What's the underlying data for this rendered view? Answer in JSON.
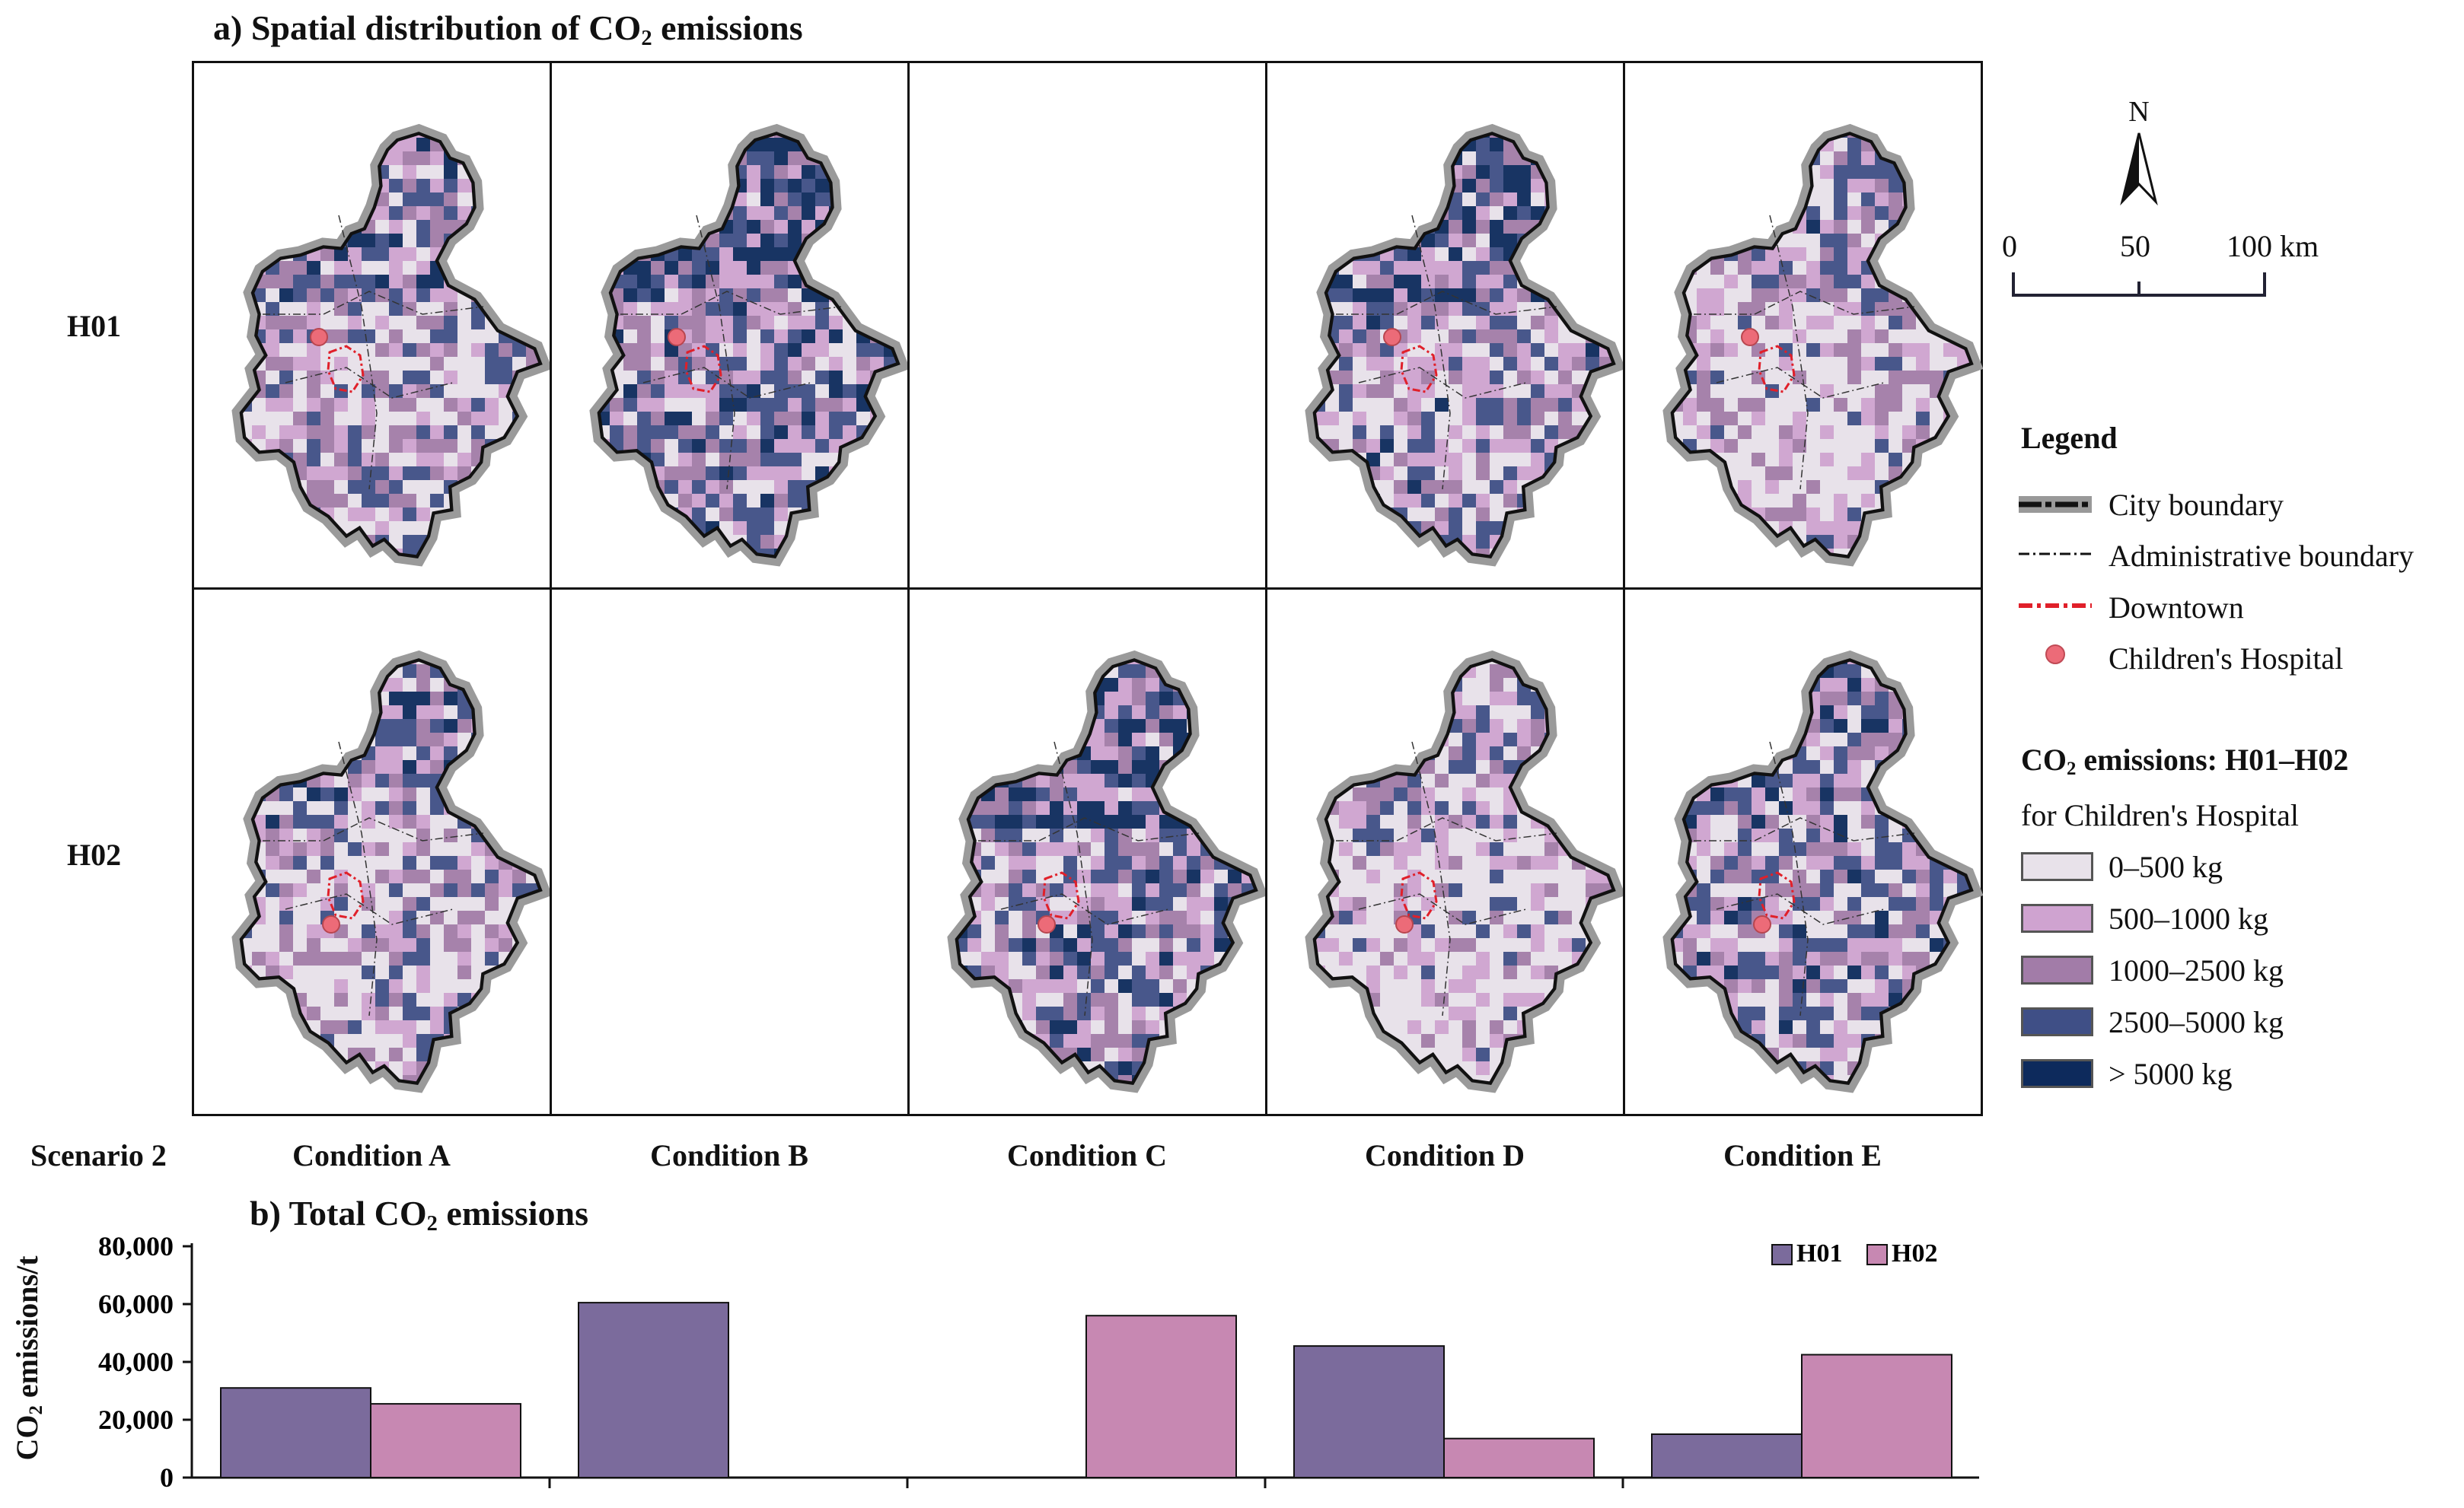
{
  "panel_a": {
    "title_prefix": "a) Spatial distribution of CO",
    "title_sub": "2",
    "title_suffix": " emissions",
    "rows": [
      "H01",
      "H02"
    ],
    "scenario_label": "Scenario 2",
    "columns": [
      "Condition A",
      "Condition B",
      "Condition C",
      "Condition D",
      "Condition E"
    ],
    "maps_present": [
      [
        true,
        true,
        false,
        true,
        true
      ],
      [
        true,
        false,
        true,
        true,
        true
      ]
    ],
    "map_intensity": [
      [
        0.45,
        0.75,
        0,
        0.6,
        0.3
      ],
      [
        0.4,
        0,
        0.72,
        0.25,
        0.6
      ]
    ]
  },
  "scale": {
    "north": "N",
    "ticks": [
      "0",
      "50",
      "100 km"
    ]
  },
  "legend": {
    "title": "Legend",
    "lines": [
      "City boundary",
      "Administrative boundary",
      "Downtown",
      "Children's Hospital"
    ],
    "classes_title_prefix": "CO",
    "classes_title_sub": "2",
    "classes_title_suffix": " emissions: H01–H02",
    "classes_subtitle": "for Children's Hospital",
    "classes": [
      "0–500 kg",
      "500–1000 kg",
      "1000–2500 kg",
      "2500–5000 kg",
      "> 5000 kg"
    ],
    "class_colors": [
      "#e8e2ea",
      "#cfa3d0",
      "#a27ca8",
      "#3f4f86",
      "#0d2a5c"
    ]
  },
  "colors": {
    "h01": "#7b6b9c",
    "h02": "#c788b2",
    "hospital": "#ec6b78",
    "downtown": "#e0202a"
  },
  "chart_data": {
    "type": "bar",
    "title_prefix": "b) Total CO",
    "title_sub": "2",
    "title_suffix": " emissions",
    "ylabel_prefix": "CO",
    "ylabel_sub": "2",
    "ylabel_suffix": " emissions/t",
    "categories": [
      "Condition A",
      "Condition B",
      "Condition C",
      "Condition D",
      "Condition E"
    ],
    "series": [
      {
        "name": "H01",
        "values": [
          31000,
          60500,
          null,
          45500,
          15000
        ]
      },
      {
        "name": "H02",
        "values": [
          25500,
          null,
          56000,
          13500,
          42500
        ]
      }
    ],
    "ylim": [
      0,
      80000
    ],
    "yticks": [
      0,
      20000,
      40000,
      60000,
      80000
    ],
    "ytick_labels": [
      "0",
      "20,000",
      "40,000",
      "60,000",
      "80,000"
    ],
    "legend_position": "top-right",
    "grid": false
  }
}
